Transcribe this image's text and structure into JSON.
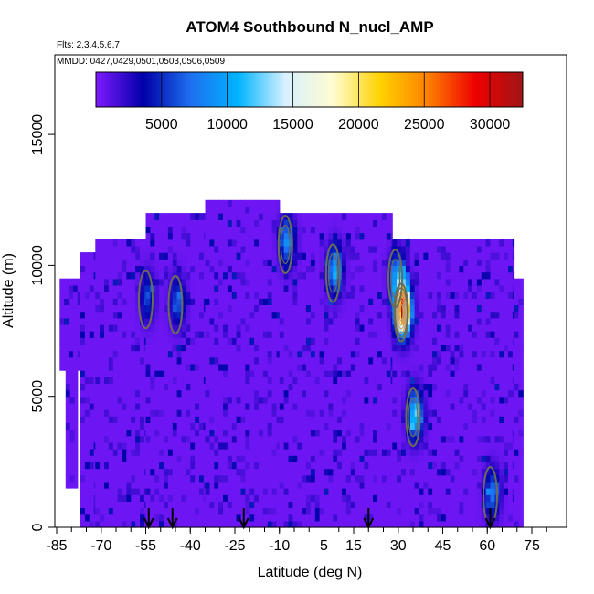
{
  "chart_data": {
    "type": "heatmap",
    "title": "ATOM4 Southbound N_nucl_AMP",
    "flights_note": "Flts: 2,3,4,5,6,7",
    "dates_note": "MMDD: 0427,0429,0501,0503,0506,0509",
    "xlabel": "Latitude (deg N)",
    "ylabel": "Altitude (m)",
    "xlim": [
      -85,
      80
    ],
    "ylim": [
      0,
      17500
    ],
    "x_ticks": [
      -85,
      -70,
      -55,
      -40,
      -25,
      -10,
      5,
      15,
      30,
      45,
      60,
      75
    ],
    "x_minor_step": 5,
    "y_ticks": [
      0,
      5000,
      10000,
      15000
    ],
    "colorbar": {
      "range": [
        0,
        32500
      ],
      "ticks": [
        5000,
        10000,
        15000,
        20000,
        25000,
        30000
      ],
      "colors": [
        "#7f1aff",
        "#0000a8",
        "#1e6ff0",
        "#00b4ff",
        "#d8f0ff",
        "#fffcd0",
        "#ffd200",
        "#ff8000",
        "#ee0000",
        "#a01515"
      ]
    },
    "background_value": 500,
    "coverage": [
      {
        "lat_from": -84,
        "lat_to": -77,
        "alt_from": 6000,
        "alt_to": 9500
      },
      {
        "lat_from": -82,
        "lat_to": -78,
        "alt_from": 1500,
        "alt_to": 6000
      },
      {
        "lat_from": -77,
        "lat_to": -72,
        "alt_from": 0,
        "alt_to": 10500
      },
      {
        "lat_from": -72,
        "lat_to": -55,
        "alt_from": 0,
        "alt_to": 11000
      },
      {
        "lat_from": -55,
        "lat_to": -35,
        "alt_from": 0,
        "alt_to": 12000
      },
      {
        "lat_from": -35,
        "lat_to": -10,
        "alt_from": 0,
        "alt_to": 12500
      },
      {
        "lat_from": -10,
        "lat_to": 28,
        "alt_from": 0,
        "alt_to": 12000
      },
      {
        "lat_from": 28,
        "lat_to": 69,
        "alt_from": 0,
        "alt_to": 11000
      },
      {
        "lat_from": 69,
        "lat_to": 72,
        "alt_from": 0,
        "alt_to": 9500
      }
    ],
    "hotspots": [
      {
        "lat": 31,
        "alt": 8200,
        "value": 30000
      },
      {
        "lat": 29,
        "alt": 9500,
        "value": 9000
      },
      {
        "lat": 35,
        "alt": 4200,
        "value": 11000
      },
      {
        "lat": 8,
        "alt": 9700,
        "value": 9500
      },
      {
        "lat": -8,
        "alt": 10800,
        "value": 8000
      },
      {
        "lat": -45,
        "alt": 8500,
        "value": 6000
      },
      {
        "lat": -55,
        "alt": 8700,
        "value": 5000
      },
      {
        "lat": 61,
        "alt": 1200,
        "value": 7000
      }
    ],
    "flight_markers_lat": [
      -54,
      -46,
      -22,
      20,
      61
    ]
  }
}
